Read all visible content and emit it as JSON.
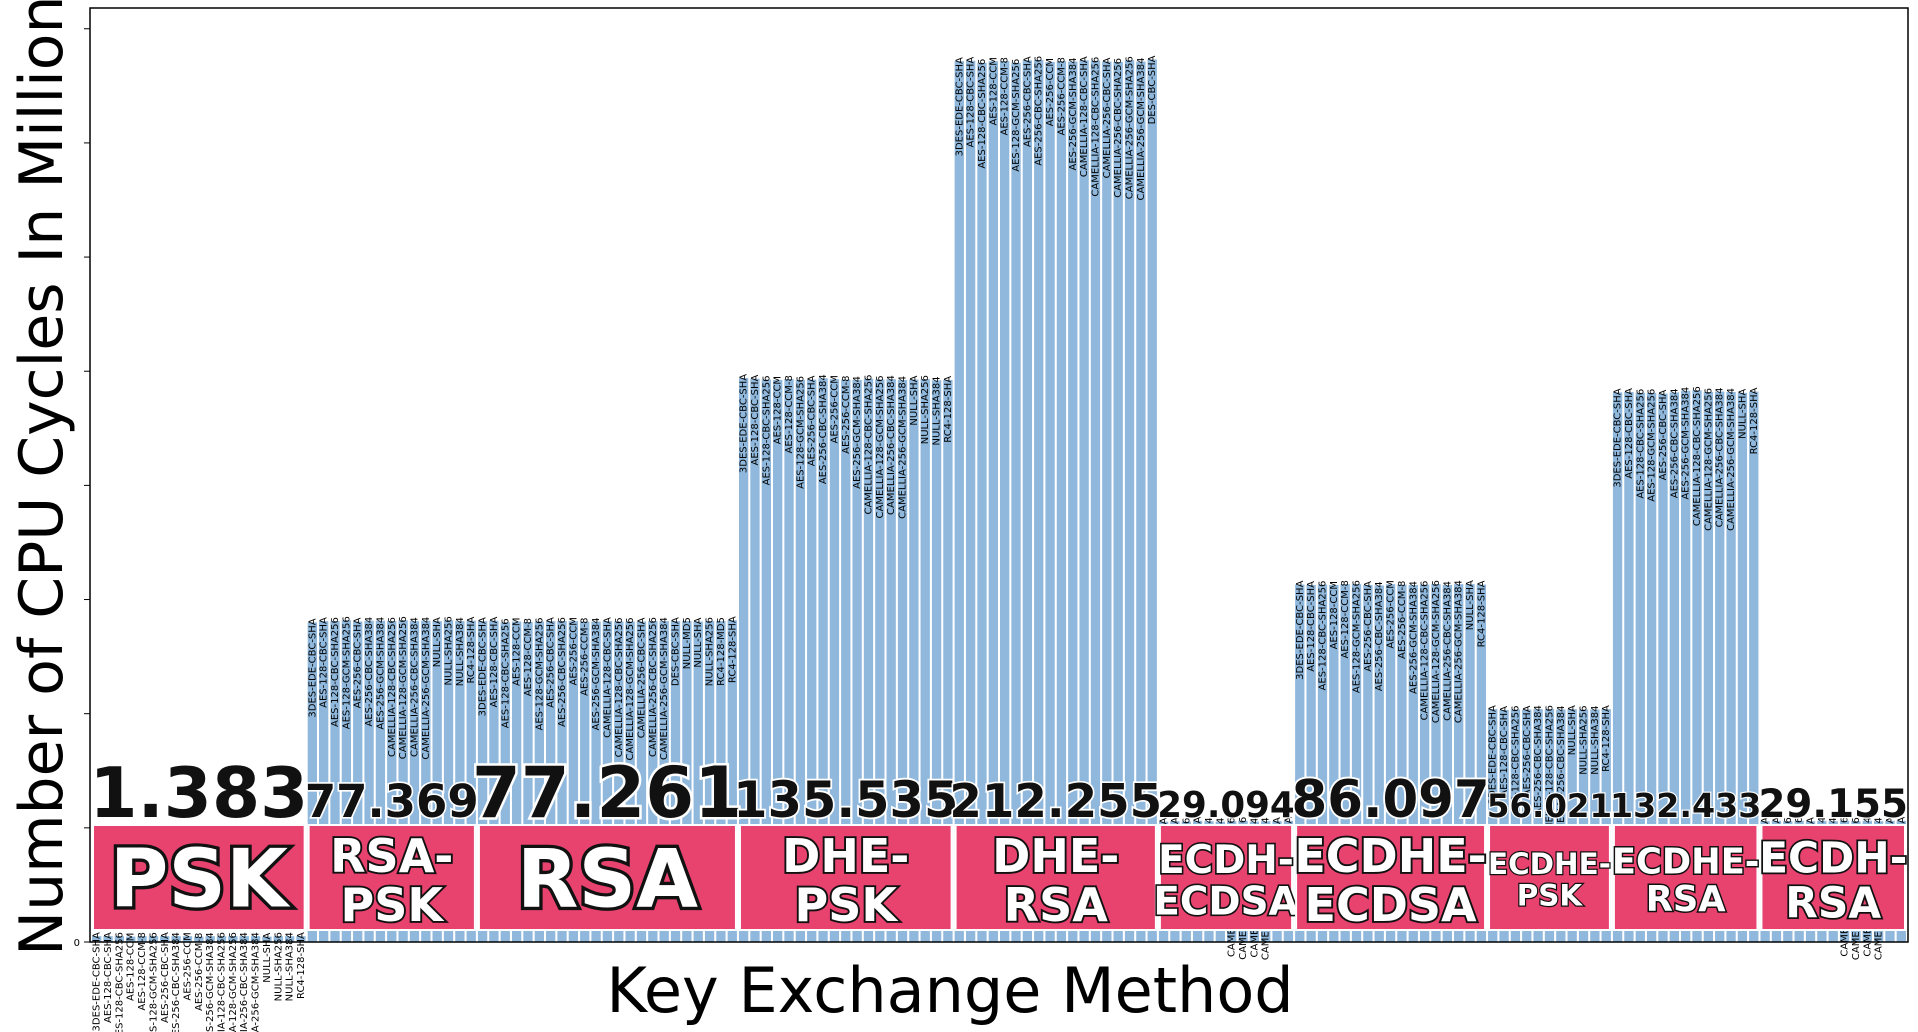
{
  "chart_data": {
    "type": "bar",
    "ylabel": "Number of CPU Cycles In Millions",
    "xlabel": "Key Exchange Method",
    "y_tick_labels": [
      "0"
    ],
    "ylim": [
      0,
      225
    ],
    "bar_color": "#8fb8dc",
    "box_color": "#e8426f",
    "groups": [
      {
        "name": "PSK",
        "avg_label": "1.383",
        "categories": [
          "3DES-EDE-CBC-SHA",
          "AES-128-CBC-SHA",
          "AES-128-CBC-SHA256",
          "AES-128-CCM",
          "AES-128-CCM-8",
          "AES-128-GCM-SHA256",
          "AES-256-CBC-SHA",
          "AES-256-CBC-SHA384",
          "AES-256-CCM",
          "AES-256-CCM-8",
          "AES-256-GCM-SHA384",
          "CAMELLIA-128-CBC-SHA256",
          "CAMELLIA-128-GCM-SHA256",
          "CAMELLIA-256-CBC-SHA384",
          "CAMELLIA-256-GCM-SHA384",
          "NULL-SHA",
          "NULL-SHA256",
          "NULL-SHA384",
          "RC4-128-SHA"
        ],
        "values": [
          1.4,
          1.4,
          1.4,
          1.3,
          1.4,
          1.4,
          1.4,
          1.4,
          1.4,
          1.3,
          1.4,
          1.4,
          1.4,
          1.4,
          1.4,
          1.3,
          1.4,
          1.4,
          1.4
        ]
      },
      {
        "name": "RSA-PSK",
        "avg_label": "77.369",
        "categories": [
          "3DES-EDE-CBC-SHA",
          "AES-128-CBC-SHA",
          "AES-128-CBC-SHA256",
          "AES-128-GCM-SHA256",
          "AES-256-CBC-SHA",
          "AES-256-CBC-SHA384",
          "AES-256-GCM-SHA384",
          "CAMELLIA-128-CBC-SHA256",
          "CAMELLIA-128-GCM-SHA256",
          "CAMELLIA-256-CBC-SHA384",
          "CAMELLIA-256-GCM-SHA384",
          "NULL-SHA",
          "NULL-SHA256",
          "NULL-SHA384",
          "RC4-128-SHA"
        ],
        "values": [
          77.0,
          77.3,
          77.3,
          77.5,
          77.2,
          77.4,
          77.4,
          77.3,
          77.5,
          77.3,
          77.4,
          77.3,
          77.5,
          77.3,
          77.4
        ]
      },
      {
        "name": "RSA",
        "avg_label": "77.261",
        "categories": [
          "3DES-EDE-CBC-SHA",
          "AES-128-CBC-SHA",
          "AES-128-CBC-SHA256",
          "AES-128-CCM",
          "AES-128-CCM-8",
          "AES-128-GCM-SHA256",
          "AES-256-CBC-SHA",
          "AES-256-CBC-SHA256",
          "AES-256-CCM",
          "AES-256-CCM-8",
          "AES-256-GCM-SHA384",
          "CAMELLIA-128-CBC-SHA",
          "CAMELLIA-128-CBC-SHA256",
          "CAMELLIA-128-GCM-SHA256",
          "CAMELLIA-256-CBC-SHA",
          "CAMELLIA-256-CBC-SHA256",
          "CAMELLIA-256-GCM-SHA384",
          "DES-CBC-SHA",
          "NULL-MD5",
          "NULL-SHA",
          "NULL-SHA256",
          "RC4-128-MD5",
          "RC4-128-SHA"
        ],
        "values": [
          77.3,
          77.4,
          77.0,
          77.2,
          77.1,
          77.2,
          77.3,
          77.3,
          77.3,
          77.2,
          77.2,
          77.3,
          77.2,
          77.2,
          77.2,
          77.3,
          77.3,
          77.3,
          77.3,
          77.2,
          77.3,
          77.3,
          77.5
        ]
      },
      {
        "name": "DHE-PSK",
        "avg_label": "135.535",
        "categories": [
          "3DES-EDE-CBC-SHA",
          "AES-128-CBC-SHA",
          "AES-128-CBC-SHA256",
          "AES-128-CCM",
          "AES-128-CCM-8",
          "AES-128-GCM-SHA256",
          "AES-256-CBC-SHA",
          "AES-256-CBC-SHA384",
          "AES-256-CCM",
          "AES-256-CCM-8",
          "AES-256-GCM-SHA384",
          "CAMELLIA-128-CBC-SHA256",
          "CAMELLIA-128-GCM-SHA256",
          "CAMELLIA-256-CBC-SHA384",
          "CAMELLIA-256-GCM-SHA384",
          "NULL-SHA",
          "NULL-SHA256",
          "NULL-SHA384",
          "RC4-128-SHA"
        ],
        "values": [
          135.9,
          135.7,
          135.5,
          135.4,
          135.6,
          135.4,
          135.5,
          135.8,
          135.6,
          135.5,
          135.4,
          135.7,
          135.5,
          135.6,
          135.4,
          135.5,
          135.6,
          135.3,
          135.4
        ]
      },
      {
        "name": "DHE-RSA",
        "avg_label": "212.255",
        "categories": [
          "3DES-EDE-CBC-SHA",
          "AES-128-CBC-SHA",
          "AES-128-CBC-SHA256",
          "AES-128-CCM",
          "AES-128-CCM-8",
          "AES-128-GCM-SHA256",
          "AES-256-CBC-SHA",
          "AES-256-CBC-SHA256",
          "AES-256-CCM",
          "AES-256-CCM-8",
          "AES-256-GCM-SHA384",
          "CAMELLIA-128-CBC-SHA",
          "CAMELLIA-128-CBC-SHA256",
          "CAMELLIA-256-CBC-SHA",
          "CAMELLIA-256-CBC-SHA256",
          "CAMELLIA-256-GCM-SHA256",
          "CAMELLIA-256-GCM-SHA384",
          "DES-CBC-SHA"
        ],
        "values": [
          212.2,
          212.3,
          211.8,
          212.2,
          212.2,
          211.8,
          212.4,
          212.5,
          212.0,
          212.2,
          212.1,
          212.4,
          212.3,
          212.1,
          212.0,
          212.4,
          212.1,
          212.6
        ]
      },
      {
        "name": "ECDH-ECDSA",
        "avg_label": "29.094",
        "categories": [
          "3DES-EDE-CBC-SHA",
          "AES-128-CBC-SHA",
          "AES-128-CBC-SHA256",
          "AES-256-CBC-SHA",
          "AES-256-CBC-SHA384",
          "AES-256-GCM-SHA384",
          "CAMELLIA-128-CBC-SHA256",
          "CAMELLIA-128-GCM-SHA256",
          "CAMELLIA-256-CBC-SHA384",
          "CAMELLIA-256-GCM-SHA384",
          "NULL-SHA",
          "RC4-128-SHA"
        ],
        "values": [
          29.0,
          29.1,
          29.0,
          29.2,
          29.1,
          29.0,
          29.1,
          29.2,
          29.0,
          29.1,
          29.1,
          29.2
        ]
      },
      {
        "name": "ECDHE-ECDSA",
        "avg_label": "86.097",
        "categories": [
          "3DES-EDE-CBC-SHA",
          "AES-128-CBC-SHA",
          "AES-128-CBC-SHA256",
          "AES-128-CCM",
          "AES-128-CCM-8",
          "AES-128-GCM-SHA256",
          "AES-256-CBC-SHA",
          "AES-256-CBC-SHA384",
          "AES-256-CCM",
          "AES-256-CCM-8",
          "AES-256-GCM-SHA384",
          "CAMELLIA-128-CBC-SHA256",
          "CAMELLIA-128-GCM-SHA256",
          "CAMELLIA-256-CBC-SHA384",
          "CAMELLIA-256-GCM-SHA384",
          "NULL-SHA",
          "RC4-128-SHA"
        ],
        "values": [
          86.1,
          86.0,
          86.1,
          86.0,
          86.2,
          86.2,
          86.0,
          85.9,
          86.2,
          86.1,
          86.0,
          86.1,
          86.2,
          86.0,
          86.2,
          86.2,
          86.1
        ]
      },
      {
        "name": "ECDHE-PSK",
        "avg_label": "56.021",
        "categories": [
          "3DES-EDE-CBC-SHA",
          "AES-128-CBC-SHA",
          "AES-128-CBC-SHA256",
          "AES-256-CBC-SHA",
          "AES-256-CBC-SHA384",
          "CAMELLIA-128-CBC-SHA256",
          "CAMELLIA-256-CBC-SHA384",
          "NULL-SHA",
          "NULL-SHA256",
          "NULL-SHA384",
          "RC4-128-SHA"
        ],
        "values": [
          56.1,
          55.9,
          56.0,
          56.0,
          56.1,
          56.1,
          56.0,
          56.1,
          56.0,
          56.0,
          56.1
        ]
      },
      {
        "name": "ECDHE-RSA",
        "avg_label": "132.433",
        "categories": [
          "3DES-EDE-CBC-SHA",
          "AES-128-CBC-SHA",
          "AES-128-CBC-SHA256",
          "AES-128-GCM-SHA256",
          "AES-256-CBC-SHA",
          "AES-256-CBC-SHA384",
          "AES-256-GCM-SHA384",
          "CAMELLIA-128-CBC-SHA256",
          "CAMELLIA-128-GCM-SHA256",
          "CAMELLIA-256-CBC-SHA384",
          "CAMELLIA-256-GCM-SHA384",
          "NULL-SHA",
          "RC4-128-SHA"
        ],
        "values": [
          132.4,
          132.5,
          132.3,
          132.3,
          132.1,
          132.4,
          132.8,
          132.9,
          132.5,
          132.6,
          132.5,
          132.3,
          132.6
        ]
      },
      {
        "name": "ECDH-RSA",
        "avg_label": "29.155",
        "categories": [
          "3DES-EDE-CBC-SHA",
          "AES-128-CBC-SHA",
          "AES-128-CBC-SHA256",
          "AES-128-GCM-SHA256",
          "AES-256-CBC-SHA",
          "AES-256-CBC-SHA384",
          "AES-256-GCM-SHA384",
          "CAMELLIA-128-CBC-SHA256",
          "CAMELLIA-128-GCM-SHA256",
          "CAMELLIA-256-CBC-SHA384",
          "CAMELLIA-256-GCM-SHA384",
          "NULL-SHA",
          "RC4-128-SHA"
        ],
        "values": [
          29.1,
          29.2,
          29.1,
          29.2,
          29.1,
          29.2,
          29.1,
          29.2,
          29.1,
          29.2,
          29.1,
          29.2,
          29.2
        ]
      }
    ]
  }
}
